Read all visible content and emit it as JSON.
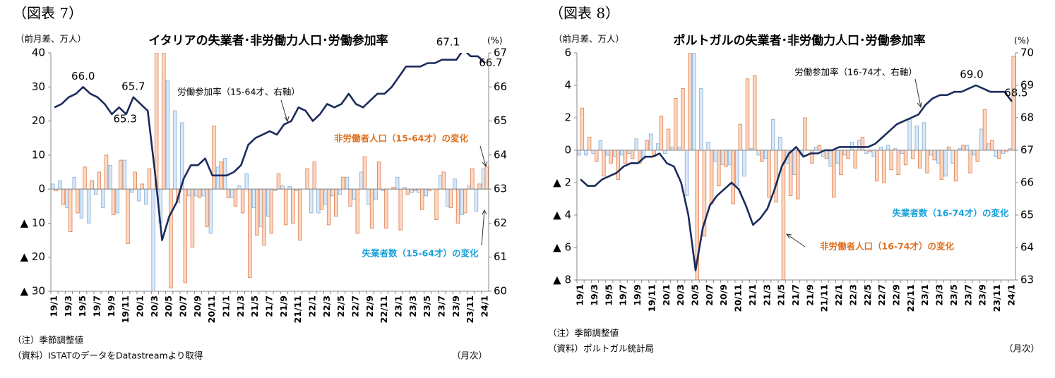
{
  "chart_data": [
    {
      "type": "bar_line",
      "fig_label": "（図表 7）",
      "y_label": "（前月差、万人）",
      "y2_label": "(%)",
      "title": "イタリアの失業者･非労働力人口･労働参加率",
      "notes": [
        "（注）季節調整値",
        "（資料）ISTATのデータをDatastreamより取得"
      ],
      "x_unit": "（月次）",
      "categories": [
        "19/1",
        null,
        "19/3",
        null,
        "19/5",
        null,
        "19/7",
        null,
        "19/9",
        null,
        "19/11",
        null,
        "20/1",
        null,
        "20/3",
        null,
        "20/5",
        null,
        "20/7",
        null,
        "20/9",
        null,
        "20/11",
        null,
        "21/1",
        null,
        "21/3",
        null,
        "21/5",
        null,
        "21/7",
        null,
        "21/9",
        null,
        "21/11",
        null,
        "22/1",
        null,
        "22/3",
        null,
        "22/5",
        null,
        "22/7",
        null,
        "22/9",
        null,
        "22/11",
        null,
        "23/1",
        null,
        "23/3",
        null,
        "23/5",
        null,
        "23/7",
        null,
        "23/9",
        null,
        "23/11",
        null,
        "24/1"
      ],
      "series": [
        {
          "name": "失業者数（15-64才）の変化",
          "type": "bar",
          "color": "#dae8f6",
          "edge_color": "#8db4dc",
          "label_color": "#1ba1d9",
          "values": [
            1.5,
            2.5,
            -5.5,
            3.5,
            -8.5,
            -10,
            -1.5,
            -5.5,
            7,
            -7,
            8.5,
            -1,
            -3.5,
            -4.5,
            -30,
            -10,
            32,
            23,
            19.5,
            -2,
            -2,
            -2,
            -13,
            6.5,
            9,
            -2.5,
            1,
            4.5,
            -5.5,
            -11,
            -8,
            -0.5,
            1,
            0.8,
            -0.5,
            0,
            -7,
            -7,
            -4.5,
            -2,
            -1.5,
            3.5,
            -3,
            5,
            -4.5,
            -3,
            -0.5,
            0,
            3.5,
            0.5,
            -1,
            -1,
            -2,
            0,
            4,
            -5,
            3,
            -7.5,
            1,
            -6.5,
            6
          ]
        },
        {
          "name": "非労働者人口（15-64才）の変化",
          "type": "bar",
          "color": "#fcd9c4",
          "edge_color": "#e0875a",
          "label_color": "#e0701f",
          "values": [
            -0.5,
            -4.5,
            -12.5,
            -7,
            6.5,
            2.5,
            5,
            10,
            -7.5,
            8.5,
            -16,
            5,
            1.5,
            6,
            40,
            40,
            -29,
            -4,
            -27.5,
            -17,
            -2.5,
            -11,
            18.5,
            8,
            -2.5,
            -5,
            -7,
            -26,
            -13.5,
            -16.5,
            -13,
            4.5,
            -10.5,
            -10,
            -15,
            6,
            8,
            -6,
            -10.5,
            -8,
            3.5,
            -5,
            -13,
            9.5,
            -11.5,
            8,
            -11.5,
            0.5,
            -12,
            -1.5,
            -0.5,
            -6,
            -0.5,
            -9,
            5,
            -5.5,
            -10,
            -7,
            6,
            1.5,
            6.5
          ]
        },
        {
          "name": "労働参加率（15-64才、右軸）",
          "type": "line",
          "axis": "y2",
          "color": "#1c2b5c",
          "label_color": "#000000",
          "values": [
            65.4,
            65.5,
            65.7,
            65.8,
            66.0,
            65.8,
            65.7,
            65.5,
            65.2,
            65.4,
            65.2,
            65.7,
            65.5,
            65.3,
            63.5,
            61.5,
            62.2,
            62.6,
            63.3,
            63.7,
            63.7,
            63.9,
            63.4,
            63.4,
            63.4,
            63.5,
            63.7,
            64.3,
            64.5,
            64.6,
            64.7,
            64.6,
            64.9,
            65.0,
            65.4,
            65.3,
            65.0,
            65.2,
            65.5,
            65.4,
            65.5,
            65.8,
            65.5,
            65.4,
            65.6,
            65.8,
            65.8,
            66.0,
            66.3,
            66.6,
            66.6,
            66.6,
            66.7,
            66.7,
            66.8,
            66.8,
            66.8,
            67.1,
            66.9,
            66.9,
            66.7
          ],
          "value_labels": [
            null,
            null,
            null,
            null,
            "66.0",
            null,
            null,
            null,
            null,
            null,
            null,
            "65.7",
            null,
            "65.3",
            null,
            null,
            null,
            null,
            null,
            null,
            null,
            null,
            null,
            null,
            null,
            null,
            null,
            null,
            null,
            null,
            null,
            null,
            null,
            null,
            null,
            null,
            null,
            null,
            null,
            null,
            null,
            null,
            null,
            null,
            null,
            null,
            null,
            null,
            null,
            null,
            null,
            null,
            null,
            null,
            null,
            null,
            null,
            "67.1",
            null,
            null,
            "66.7"
          ]
        }
      ],
      "ylim": [
        -30,
        40
      ],
      "yticks": [
        {
          "value": -30,
          "label": "▲ 30"
        },
        {
          "value": -20,
          "label": "▲ 20"
        },
        {
          "value": -10,
          "label": "▲ 10"
        },
        0,
        10,
        20,
        30,
        40
      ],
      "y2lim": [
        60,
        67
      ],
      "y2ticks": [
        60,
        61,
        62,
        63,
        64,
        65,
        66,
        67
      ]
    },
    {
      "type": "bar_line",
      "fig_label": "（図表 8）",
      "y_label": "（前月差、万人）",
      "y2_label": "(%)",
      "title": "ポルトガルの失業者･非労働力人口･労働参加率",
      "notes": [
        "（注）季節調整値",
        "（資料）ポルトガル統計局"
      ],
      "x_unit": "（月次）",
      "categories": [
        "19/1",
        null,
        "19/3",
        null,
        "19/5",
        null,
        "19/7",
        null,
        "19/9",
        null,
        "19/11",
        null,
        "20/1",
        null,
        "20/3",
        null,
        "20/5",
        null,
        "20/7",
        null,
        "20/9",
        null,
        "20/11",
        null,
        "21/1",
        null,
        "21/3",
        null,
        "21/5",
        null,
        "21/7",
        null,
        "21/9",
        null,
        "21/11",
        null,
        "22/1",
        null,
        "22/3",
        null,
        "22/5",
        null,
        "22/7",
        null,
        "22/9",
        null,
        "22/11",
        null,
        "23/1",
        null,
        "23/3",
        null,
        "23/5",
        null,
        "23/7",
        null,
        "23/9",
        null,
        "23/11",
        null,
        "24/1"
      ],
      "series": [
        {
          "name": "失業者数（16-74才）の変化",
          "type": "bar",
          "color": "#dae8f6",
          "edge_color": "#8db4dc",
          "label_color": "#1ba1d9",
          "values": [
            -0.3,
            -0.3,
            -0.2,
            0.6,
            -0.3,
            -0.4,
            -0.3,
            -0.2,
            0.7,
            -0.5,
            1.0,
            0.4,
            -0.2,
            0.2,
            0.2,
            -2.8,
            6,
            3.8,
            0.5,
            -0.7,
            -0.9,
            -0.9,
            -2.2,
            -1.6,
            0.1,
            -0.3,
            -0.5,
            1.9,
            0.8,
            -0.8,
            -1.5,
            -0.3,
            0,
            0.2,
            -0.4,
            -1.0,
            -0.8,
            -0.3,
            0.5,
            0.6,
            -0.2,
            -0.4,
            0.2,
            0.3,
            0.1,
            -0.2,
            1.9,
            1.5,
            1.7,
            -0.3,
            -0.8,
            -1.6,
            -0.8,
            0.1,
            0.3,
            -0.3,
            1.3,
            0.4,
            -0.4,
            -0.2,
            0.1
          ]
        },
        {
          "name": "非労働者人口（16-74才）の変化",
          "type": "bar",
          "color": "#fcd9c4",
          "edge_color": "#e0875a",
          "label_color": "#e0701f",
          "values": [
            2.6,
            0.8,
            -0.7,
            -1.6,
            -0.8,
            -1.8,
            -0.8,
            -0.5,
            -0.8,
            0.6,
            -0.4,
            2.1,
            1.3,
            3.2,
            3.8,
            6,
            -8,
            -5.3,
            -3.3,
            -2.2,
            -1.0,
            -3.3,
            1.6,
            4.4,
            4.6,
            -0.7,
            -2.9,
            -3.2,
            -8,
            -2.8,
            -3.0,
            2.0,
            -0.8,
            0.3,
            -0.5,
            -2.9,
            -1.5,
            -0.5,
            -1.1,
            0.8,
            -0.1,
            -1.9,
            -2.0,
            -1.2,
            -1.5,
            -0.9,
            -0.5,
            -1.1,
            -1.4,
            -0.6,
            -1.8,
            0.2,
            -1.9,
            0.3,
            -1.4,
            -0.7,
            2.5,
            0.6,
            -0.5,
            -0.1,
            5.8
          ]
        },
        {
          "name": "労働参加率（16-74才、右軸）",
          "type": "line",
          "axis": "y2",
          "color": "#1c2b5c",
          "label_color": "#000000",
          "values": [
            66.1,
            65.9,
            65.9,
            66.1,
            66.2,
            66.3,
            66.5,
            66.6,
            66.6,
            66.8,
            66.8,
            66.9,
            66.6,
            66.5,
            66.0,
            65.0,
            63.3,
            64.6,
            65.3,
            65.6,
            65.8,
            66.0,
            65.8,
            65.3,
            64.7,
            64.9,
            65.2,
            65.8,
            66.5,
            66.9,
            67.1,
            66.8,
            66.9,
            66.9,
            67.0,
            67.0,
            67.1,
            67.1,
            67.1,
            67.1,
            67.1,
            67.2,
            67.4,
            67.6,
            67.8,
            67.9,
            68.0,
            68.1,
            68.4,
            68.6,
            68.7,
            68.7,
            68.8,
            68.8,
            68.9,
            69.0,
            68.9,
            68.8,
            68.8,
            68.8,
            68.5
          ],
          "value_labels": [
            null,
            null,
            null,
            null,
            null,
            null,
            null,
            null,
            null,
            null,
            null,
            null,
            null,
            null,
            null,
            null,
            null,
            null,
            null,
            null,
            null,
            null,
            null,
            null,
            null,
            null,
            null,
            null,
            null,
            null,
            null,
            null,
            null,
            null,
            null,
            null,
            null,
            null,
            null,
            null,
            null,
            null,
            null,
            null,
            null,
            null,
            null,
            null,
            null,
            null,
            null,
            null,
            null,
            null,
            null,
            "69.0",
            null,
            null,
            null,
            null,
            "68.5"
          ]
        }
      ],
      "ylim": [
        -8,
        6
      ],
      "yticks": [
        {
          "value": -8,
          "label": "▲ 8"
        },
        {
          "value": -6,
          "label": "▲ 6"
        },
        {
          "value": -4,
          "label": "▲ 4"
        },
        {
          "value": -2,
          "label": "▲ 2"
        },
        0,
        2,
        4,
        6
      ],
      "y2lim": [
        63,
        70
      ],
      "y2ticks": [
        63,
        64,
        65,
        66,
        67,
        68,
        69,
        70
      ]
    }
  ]
}
